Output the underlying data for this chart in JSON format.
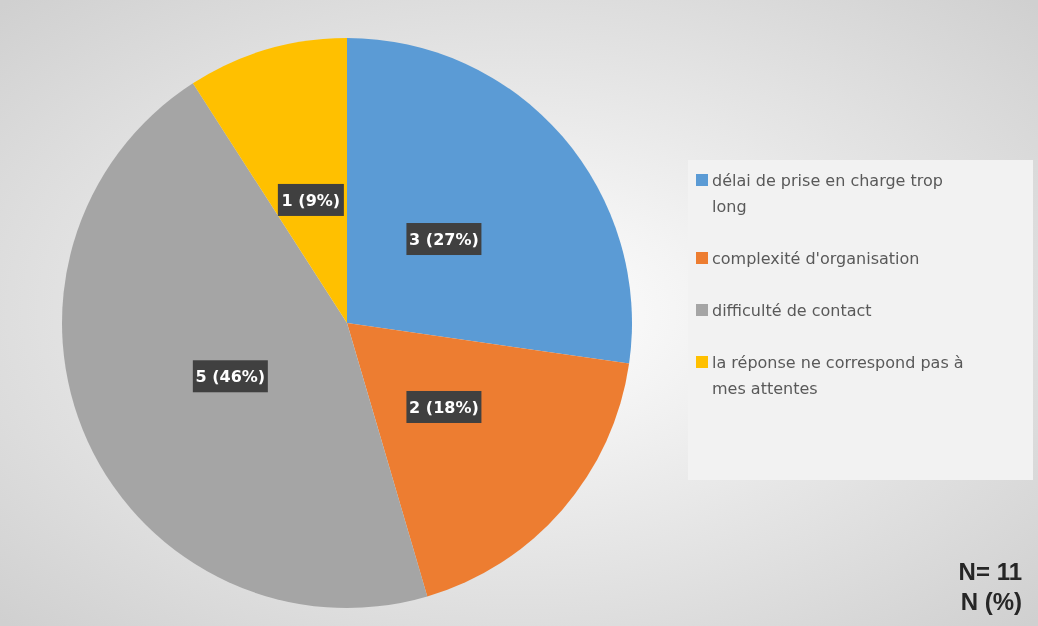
{
  "chart_data": {
    "type": "pie",
    "categories": [
      "délai de prise en charge trop long",
      "complexité d'organisation",
      "difficulté de contact",
      "la réponse ne correspond pas à mes attentes"
    ],
    "values": [
      3,
      2,
      5,
      1
    ],
    "colors": [
      "#5b9bd5",
      "#ed7d31",
      "#a5a5a5",
      "#ffc000"
    ],
    "value_labels": [
      "3 (27%)",
      "2 (18%)",
      "5 (46%)",
      "1 (9%)"
    ],
    "legend": "right",
    "annotations": [
      "N= 11",
      "N (%)"
    ]
  }
}
